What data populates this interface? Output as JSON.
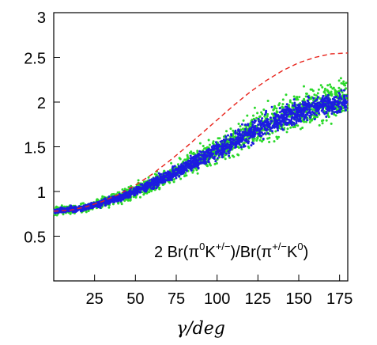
{
  "chart_data": {
    "type": "scatter",
    "title": "",
    "xlabel": "γ/deg",
    "ylabel": "",
    "xlim": [
      0,
      180
    ],
    "ylim": [
      0.0,
      3.0
    ],
    "x_ticks": [
      "25",
      "50",
      "75",
      "100",
      "125",
      "150",
      "175"
    ],
    "y_ticks": [
      "0.5",
      "1",
      "1.5",
      "2",
      "2.5",
      "3"
    ],
    "annotation": {
      "prefix": "2 Br(π",
      "sup1": "0",
      "mid1": "K",
      "sup2": "+/−",
      "mid2": ")/Br(π",
      "sup3": "+/−",
      "mid3": "K",
      "sup4": "0",
      "suffix": ")"
    },
    "series": [
      {
        "style": "dashed-line",
        "color": "#e8241c",
        "x": [
          0,
          10,
          20,
          30,
          40,
          50,
          60,
          70,
          80,
          90,
          100,
          110,
          120,
          130,
          140,
          150,
          160,
          170,
          180
        ],
        "y": [
          0.78,
          0.79,
          0.83,
          0.89,
          0.97,
          1.07,
          1.19,
          1.33,
          1.48,
          1.64,
          1.8,
          1.96,
          2.11,
          2.24,
          2.35,
          2.44,
          2.5,
          2.54,
          2.55
        ]
      },
      {
        "style": "scatter",
        "color": "#2bd92b",
        "x": [
          0,
          20,
          40,
          60,
          80,
          100,
          120,
          140,
          160,
          180
        ],
        "y_center": [
          0.78,
          0.82,
          0.93,
          1.08,
          1.27,
          1.46,
          1.66,
          1.84,
          1.98,
          2.05
        ],
        "y_spread": [
          0.04,
          0.05,
          0.06,
          0.08,
          0.11,
          0.14,
          0.17,
          0.19,
          0.2,
          0.2
        ]
      },
      {
        "style": "scatter",
        "color": "#1c1ce0",
        "x": [
          0,
          20,
          40,
          60,
          80,
          100,
          120,
          140,
          160,
          180
        ],
        "y_center": [
          0.78,
          0.82,
          0.93,
          1.08,
          1.27,
          1.46,
          1.65,
          1.82,
          1.95,
          2.0
        ],
        "y_spread": [
          0.025,
          0.03,
          0.04,
          0.05,
          0.07,
          0.09,
          0.11,
          0.12,
          0.12,
          0.12
        ]
      }
    ]
  }
}
